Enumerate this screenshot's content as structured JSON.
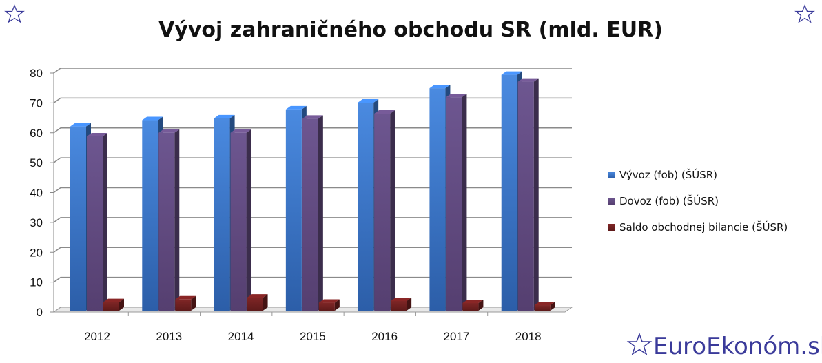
{
  "brand": {
    "name": "EuroEkonóm.sk",
    "icon": "star-outline-icon",
    "color": "#3a3a9a"
  },
  "chart_data": {
    "type": "bar",
    "title": "Vývoj zahraničného obchodu SR (mld. EUR)",
    "categories": [
      "2012",
      "2013",
      "2014",
      "2015",
      "2016",
      "2017",
      "2018"
    ],
    "series": [
      {
        "name": "Vývoz (fob) (ŠÚSR)",
        "color": "#3a78cc",
        "values": [
          62.1,
          64.2,
          64.8,
          67.8,
          70.1,
          74.9,
          79.4
        ]
      },
      {
        "name": "Dovoz (fob)  (ŠÚSR)",
        "color": "#5f497a",
        "values": [
          58.8,
          60.0,
          60.0,
          64.7,
          66.4,
          71.9,
          77.1
        ]
      },
      {
        "name": "Saldo obchodnej bilancie (ŠÚSR)",
        "color": "#6e1e1e",
        "values": [
          3.3,
          4.2,
          4.8,
          3.1,
          3.7,
          3.0,
          2.3
        ]
      }
    ],
    "yticks": [
      0,
      10,
      20,
      30,
      40,
      50,
      60,
      70,
      80
    ],
    "ylim": [
      0,
      80
    ],
    "grid": true,
    "legend_position": "right",
    "xlabel": "",
    "ylabel": ""
  }
}
